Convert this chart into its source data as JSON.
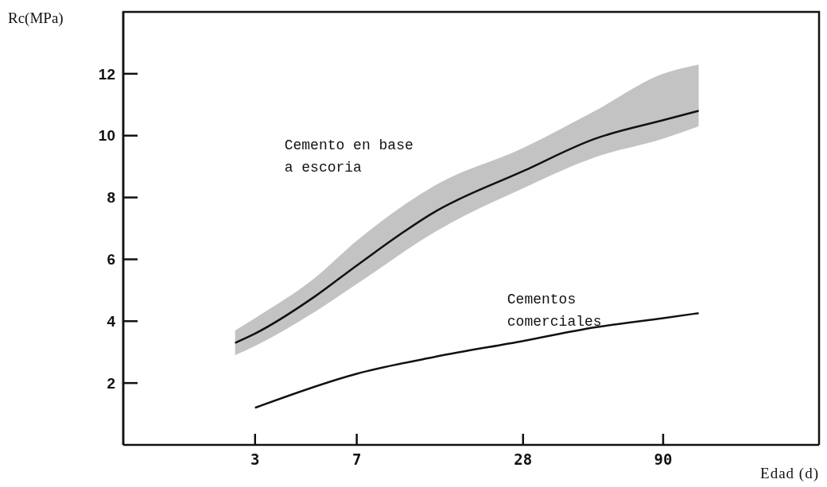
{
  "chart_data": {
    "type": "line",
    "xlabel": "Edad (d)",
    "ylabel": "Rc(MPa)",
    "log": "x",
    "xlim": [
      1,
      330
    ],
    "xticks": [
      3,
      7,
      28,
      90
    ],
    "ylim": [
      0,
      14
    ],
    "yticks": [
      2,
      4,
      6,
      8,
      10,
      12
    ],
    "grid": false,
    "legend": false,
    "marker": "none",
    "line_style": "solid",
    "series": [
      {
        "name": "Cemento en base a escoria",
        "color": "#111111",
        "x": [
          2.54,
          3,
          4.94,
          7,
          13.5,
          28,
          51,
          90,
          121
        ],
        "values": [
          3.3,
          3.6,
          4.8,
          5.8,
          7.55,
          8.85,
          9.9,
          10.5,
          10.8
        ],
        "lower": [
          2.9,
          3.2,
          4.3,
          5.2,
          6.9,
          8.3,
          9.3,
          9.9,
          10.3
        ],
        "upper": [
          3.7,
          4.1,
          5.4,
          6.6,
          8.4,
          9.6,
          10.8,
          12.0,
          12.3
        ]
      },
      {
        "name": "Cementos comerciales",
        "color": "#111111",
        "x": [
          3,
          7,
          13.5,
          28,
          51,
          90,
          121
        ],
        "values": [
          1.2,
          2.3,
          2.85,
          3.36,
          3.8,
          4.1,
          4.26
        ]
      }
    ]
  }
}
